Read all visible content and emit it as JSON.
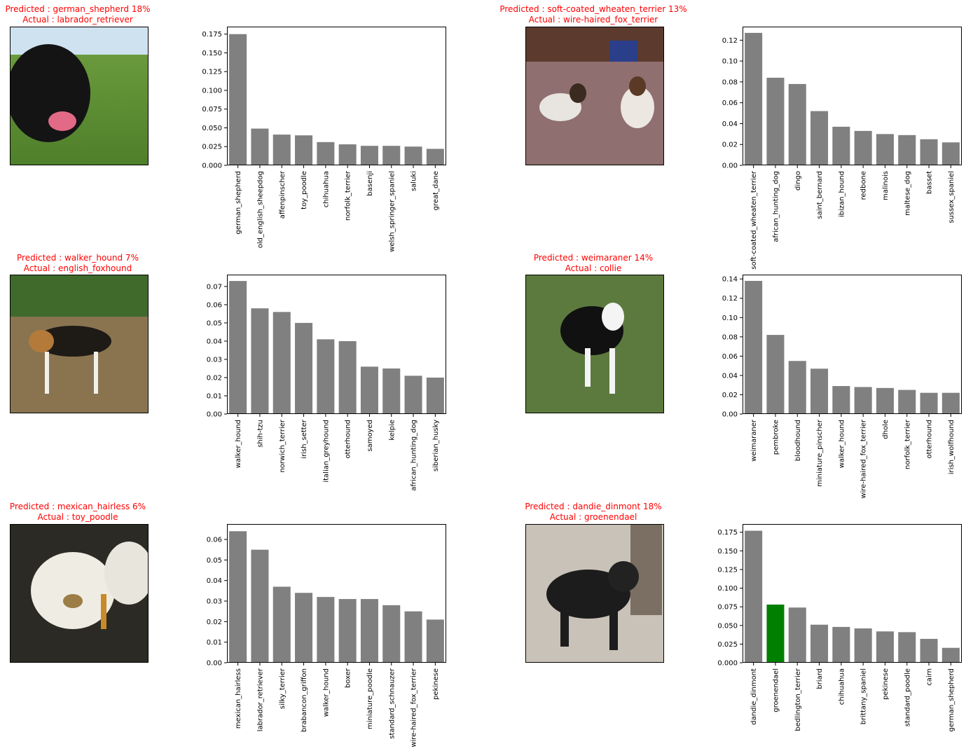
{
  "colors": {
    "bar": "#808080",
    "highlight": "#008000",
    "title": "#ff0000",
    "axis": "#000000"
  },
  "panels": [
    {
      "predicted": "Predicted : german_shepherd 18%",
      "actual": "Actual : labrador_retriever",
      "photo": "black-labrador-on-grass",
      "chart_data": {
        "type": "bar",
        "categories": [
          "german_shepherd",
          "old_english_sheepdog",
          "affenpinscher",
          "toy_poodle",
          "chihuahua",
          "norfolk_terrier",
          "basenji",
          "welsh_springer_spaniel",
          "saluki",
          "great_dane"
        ],
        "values": [
          0.175,
          0.049,
          0.041,
          0.04,
          0.031,
          0.028,
          0.026,
          0.026,
          0.025,
          0.022
        ],
        "highlight_index": null,
        "ylim": [
          0,
          0.185
        ],
        "yticks": [
          0.0,
          0.025,
          0.05,
          0.075,
          0.1,
          0.125,
          0.15,
          0.175
        ],
        "ytick_labels": [
          "0.000",
          "0.025",
          "0.050",
          "0.075",
          "0.100",
          "0.125",
          "0.150",
          "0.175"
        ]
      }
    },
    {
      "predicted": "Predicted : soft-coated_wheaten_terrier 13%",
      "actual": "Actual : wire-haired_fox_terrier",
      "photo": "two-fox-terriers-indoors",
      "chart_data": {
        "type": "bar",
        "categories": [
          "soft-coated_wheaten_terrier",
          "african_hunting_dog",
          "dingo",
          "saint_bernard",
          "ibizan_hound",
          "redbone",
          "malinois",
          "maltese_dog",
          "basset",
          "sussex_spaniel"
        ],
        "values": [
          0.127,
          0.084,
          0.078,
          0.052,
          0.037,
          0.033,
          0.03,
          0.029,
          0.025,
          0.022
        ],
        "highlight_index": null,
        "ylim": [
          0,
          0.133
        ],
        "yticks": [
          0.0,
          0.02,
          0.04,
          0.06,
          0.08,
          0.1,
          0.12
        ],
        "ytick_labels": [
          "0.00",
          "0.02",
          "0.04",
          "0.06",
          "0.08",
          "0.10",
          "0.12"
        ]
      }
    },
    {
      "predicted": "Predicted : walker_hound  7%",
      "actual": "Actual : english_foxhound",
      "photo": "foxhound-on-dirt",
      "chart_data": {
        "type": "bar",
        "categories": [
          "walker_hound",
          "shih-tzu",
          "norwich_terrier",
          "irish_setter",
          "italian_greyhound",
          "otterhound",
          "samoyed",
          "kelpie",
          "african_hunting_dog",
          "siberian_husky"
        ],
        "values": [
          0.073,
          0.058,
          0.056,
          0.05,
          0.041,
          0.04,
          0.026,
          0.025,
          0.021,
          0.02
        ],
        "highlight_index": null,
        "ylim": [
          0,
          0.0765
        ],
        "yticks": [
          0.0,
          0.01,
          0.02,
          0.03,
          0.04,
          0.05,
          0.06,
          0.07
        ],
        "ytick_labels": [
          "0.00",
          "0.01",
          "0.02",
          "0.03",
          "0.04",
          "0.05",
          "0.06",
          "0.07"
        ]
      }
    },
    {
      "predicted": "Predicted : weimaraner 14%",
      "actual": "Actual : collie",
      "photo": "black-white-collie-on-grass",
      "chart_data": {
        "type": "bar",
        "categories": [
          "weimaraner",
          "pembroke",
          "bloodhound",
          "miniature_pinscher",
          "walker_hound",
          "wire-haired_fox_terrier",
          "dhole",
          "norfolk_terrier",
          "otterhound",
          "irish_wolfhound"
        ],
        "values": [
          0.138,
          0.082,
          0.055,
          0.047,
          0.029,
          0.028,
          0.027,
          0.025,
          0.022,
          0.022
        ],
        "highlight_index": null,
        "ylim": [
          0,
          0.1445
        ],
        "yticks": [
          0.0,
          0.02,
          0.04,
          0.06,
          0.08,
          0.1,
          0.12,
          0.14
        ],
        "ytick_labels": [
          "0.00",
          "0.02",
          "0.04",
          "0.06",
          "0.08",
          "0.10",
          "0.12",
          "0.14"
        ]
      }
    },
    {
      "predicted": "Predicted : mexican_hairless  6%",
      "actual": "Actual : toy_poodle",
      "photo": "white-poodle-in-car",
      "chart_data": {
        "type": "bar",
        "categories": [
          "mexican_hairless",
          "labrador_retriever",
          "silky_terrier",
          "brabancon_griffon",
          "walker_hound",
          "boxer",
          "miniature_poodle",
          "standard_schnauzer",
          "wire-haired_fox_terrier",
          "pekinese"
        ],
        "values": [
          0.064,
          0.055,
          0.037,
          0.034,
          0.032,
          0.031,
          0.031,
          0.028,
          0.025,
          0.021
        ],
        "highlight_index": null,
        "ylim": [
          0,
          0.0675
        ],
        "yticks": [
          0.0,
          0.01,
          0.02,
          0.03,
          0.04,
          0.05,
          0.06
        ],
        "ytick_labels": [
          "0.00",
          "0.01",
          "0.02",
          "0.03",
          "0.04",
          "0.05",
          "0.06"
        ]
      }
    },
    {
      "predicted": "Predicted : dandie_dinmont 18%",
      "actual": "Actual : groenendael",
      "photo": "black-groenendael-puppy",
      "chart_data": {
        "type": "bar",
        "categories": [
          "dandie_dinmont",
          "groenendael",
          "bedlington_terrier",
          "briard",
          "chihuahua",
          "brittany_spaniel",
          "pekinese",
          "standard_poodle",
          "cairn",
          "german_shepherd"
        ],
        "values": [
          0.177,
          0.078,
          0.074,
          0.051,
          0.048,
          0.046,
          0.042,
          0.041,
          0.032,
          0.02
        ],
        "highlight_index": 1,
        "ylim": [
          0,
          0.186
        ],
        "yticks": [
          0.0,
          0.025,
          0.05,
          0.075,
          0.1,
          0.125,
          0.15,
          0.175
        ],
        "ytick_labels": [
          "0.000",
          "0.025",
          "0.050",
          "0.075",
          "0.100",
          "0.125",
          "0.150",
          "0.175"
        ]
      }
    }
  ]
}
